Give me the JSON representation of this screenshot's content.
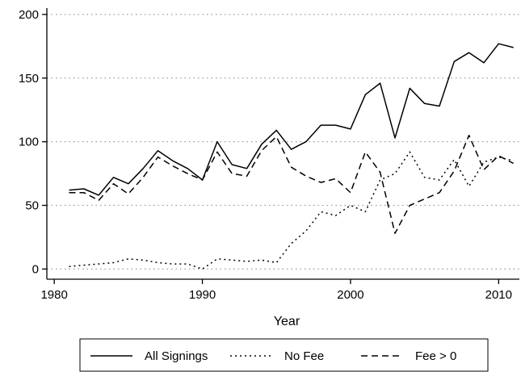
{
  "chart_data": {
    "type": "line",
    "title": "",
    "xlabel": "Year",
    "ylabel": "",
    "xlim": [
      1979.5,
      2011.4
    ],
    "ylim": [
      -8,
      205
    ],
    "xticks": [
      1980,
      1990,
      2000,
      2010
    ],
    "yticks": [
      0,
      50,
      100,
      150,
      200
    ],
    "grid": "horizontal-dotted",
    "legend_position": "bottom",
    "x": [
      1981,
      1982,
      1983,
      1984,
      1985,
      1986,
      1987,
      1988,
      1989,
      1990,
      1991,
      1992,
      1993,
      1994,
      1995,
      1996,
      1997,
      1998,
      1999,
      2000,
      2001,
      2002,
      2003,
      2004,
      2005,
      2006,
      2007,
      2008,
      2009,
      2010,
      2011
    ],
    "series": [
      {
        "name": "All Signings",
        "style": "solid",
        "values": [
          62,
          63,
          58,
          72,
          67,
          79,
          93,
          85,
          79,
          70,
          100,
          82,
          79,
          98,
          109,
          94,
          100,
          113,
          113,
          110,
          137,
          146,
          103,
          142,
          130,
          128,
          163,
          170,
          162,
          177,
          174
        ]
      },
      {
        "name": "No Fee",
        "style": "dotted",
        "values": [
          2,
          3,
          4,
          5,
          8,
          7,
          5,
          4,
          4,
          0,
          8,
          7,
          6,
          7,
          5,
          20,
          30,
          45,
          42,
          50,
          45,
          70,
          75,
          92,
          72,
          70,
          86,
          65,
          84,
          88,
          85
        ]
      },
      {
        "name": "Fee > 0",
        "style": "dashed",
        "values": [
          60,
          60,
          54,
          67,
          59,
          72,
          88,
          81,
          75,
          70,
          92,
          75,
          73,
          93,
          104,
          80,
          73,
          68,
          71,
          60,
          92,
          76,
          28,
          50,
          55,
          60,
          77,
          105,
          78,
          89,
          83
        ]
      }
    ]
  }
}
